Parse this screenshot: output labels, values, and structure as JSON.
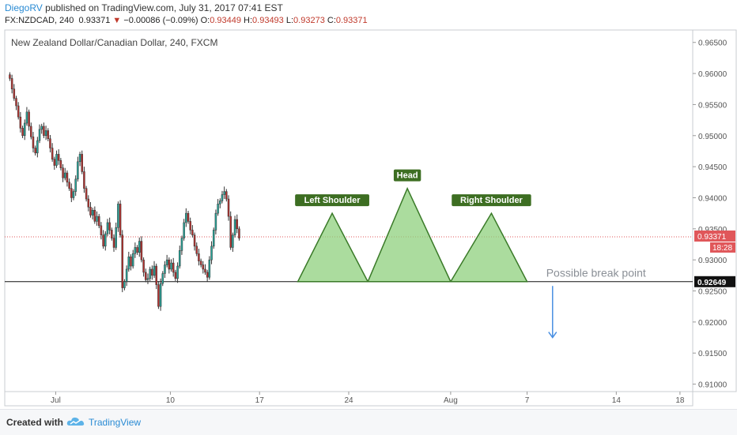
{
  "header": {
    "author": "DiegoRV",
    "published": "published on TradingView.com, July 31, 2017 07:41 EST",
    "symbol": "FX:NZDCAD, 240",
    "last": "0.93371",
    "change_arrow": "▼",
    "change": "−0.00086 (−0.09%)",
    "open_label": "O:",
    "open": "0.93449",
    "high_label": "H:",
    "high": "0.93493",
    "low_label": "L:",
    "low": "0.93273",
    "close_label": "C:",
    "close": "0.93371"
  },
  "footer": {
    "created": "Created with",
    "brand": "TradingView",
    "logo_icon": "tradingview-cloud-icon"
  },
  "chart_data": {
    "type": "candlestick",
    "title": "New Zealand Dollar/Canadian Dollar, 240, FXCM",
    "x_tick_labels": [
      {
        "day": 1,
        "label": "Jul"
      },
      {
        "day": 10,
        "label": "10"
      },
      {
        "day": 17,
        "label": "17"
      },
      {
        "day": 24,
        "label": "24"
      },
      {
        "day": 32,
        "label": "Aug"
      },
      {
        "day": 38,
        "label": "7"
      },
      {
        "day": 45,
        "label": "14"
      },
      {
        "day": 50,
        "label": "18"
      }
    ],
    "x_range_days": [
      -3,
      51
    ],
    "ylim": [
      0.9088,
      0.967
    ],
    "y_ticks": [
      0.965,
      0.96,
      0.955,
      0.95,
      0.945,
      0.94,
      0.935,
      0.93,
      0.925,
      0.92,
      0.915,
      0.91
    ],
    "y_tick_labels": [
      "0.96500",
      "0.96000",
      "0.95500",
      "0.95000",
      "0.94500",
      "0.94000",
      "0.93500",
      "0.93000",
      "0.92500",
      "0.92000",
      "0.91500",
      "0.91000"
    ],
    "last_price": 0.93371,
    "last_price_label": "0.93371",
    "countdown": "18:28",
    "support_level": 0.92649,
    "support_label": "0.92649",
    "colors": {
      "up": "#26a69a",
      "down": "#b5322f",
      "pattern_fill": "#8fd07d",
      "pattern_stroke": "#3a7a28",
      "label_bg": "#3d6e22",
      "last_price": "#e0575a",
      "arrow": "#4a90e2"
    },
    "candles_start_day": -2.6,
    "candles_per_day": 6,
    "closes": [
      0.9592,
      0.9575,
      0.956,
      0.9548,
      0.953,
      0.9512,
      0.95,
      0.952,
      0.9538,
      0.9515,
      0.9498,
      0.948,
      0.9472,
      0.9492,
      0.951,
      0.9515,
      0.95,
      0.9508,
      0.9495,
      0.948,
      0.9462,
      0.9452,
      0.947,
      0.946,
      0.9448,
      0.9432,
      0.944,
      0.9425,
      0.9415,
      0.94,
      0.941,
      0.943,
      0.9458,
      0.947,
      0.9442,
      0.9415,
      0.9398,
      0.9385,
      0.9372,
      0.938,
      0.9362,
      0.937,
      0.9355,
      0.934,
      0.9322,
      0.9342,
      0.936,
      0.9348,
      0.9335,
      0.932,
      0.9352,
      0.939,
      0.934,
      0.9255,
      0.9265,
      0.9285,
      0.9305,
      0.929,
      0.931,
      0.932,
      0.9312,
      0.933,
      0.93,
      0.928,
      0.9268,
      0.927,
      0.9285,
      0.9275,
      0.929,
      0.926,
      0.9225,
      0.9262,
      0.9278,
      0.9292,
      0.93,
      0.9285,
      0.9295,
      0.928,
      0.927,
      0.929,
      0.9315,
      0.9335,
      0.936,
      0.9375,
      0.9362,
      0.9348,
      0.934,
      0.9322,
      0.931,
      0.9298,
      0.9292,
      0.9285,
      0.928,
      0.9272,
      0.93,
      0.9322,
      0.9348,
      0.9375,
      0.939,
      0.9395,
      0.9405,
      0.941,
      0.9398,
      0.937,
      0.932,
      0.934,
      0.9365,
      0.935,
      0.9335
    ],
    "annotations": [
      {
        "label": "Left Shoulder",
        "day": 22.7,
        "value": 0.9375
      },
      {
        "label": "Head",
        "day": 28.6,
        "value": 0.9415
      },
      {
        "label": "Right Shoulder",
        "day": 35.2,
        "value": 0.9375
      }
    ],
    "triangles": [
      [
        [
          20.0,
          0.92649
        ],
        [
          22.7,
          0.9375
        ],
        [
          25.5,
          0.92649
        ]
      ],
      [
        [
          25.5,
          0.92649
        ],
        [
          28.6,
          0.9415
        ],
        [
          32.0,
          0.92649
        ]
      ],
      [
        [
          32.0,
          0.92649
        ],
        [
          35.2,
          0.9375
        ],
        [
          38.0,
          0.92649
        ]
      ]
    ],
    "callout": {
      "text": "Possible break point",
      "day": 39.5,
      "value": 0.9268
    },
    "arrow": {
      "day": 40.0,
      "from": 0.9258,
      "to": 0.9175
    }
  }
}
